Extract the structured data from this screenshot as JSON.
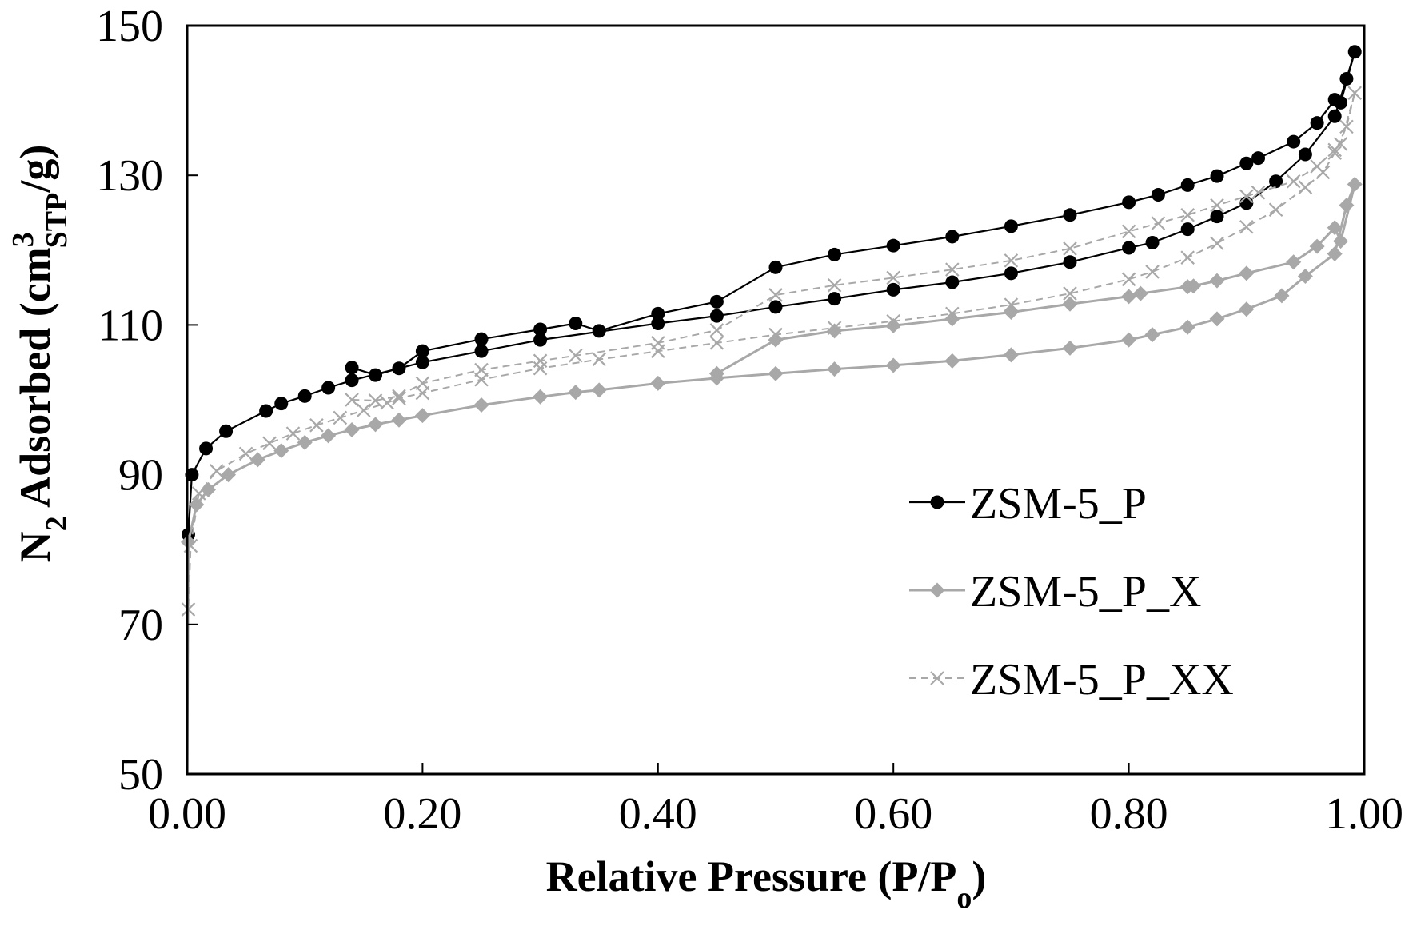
{
  "chart_data": {
    "type": "scatter",
    "xlabel": "Relative Pressure (P/P",
    "xlabel_sub": "o",
    "xlabel_end": ")",
    "ylabel": {
      "p1": "N",
      "s1": "2",
      "p2": " Adsorbed (cm",
      "sup": "3",
      "sub2": "STP",
      "p3": "/g)"
    },
    "xlim": [
      0,
      1.0
    ],
    "ylim": [
      50,
      150
    ],
    "xticks": [
      "0.00",
      "0.20",
      "0.40",
      "0.60",
      "0.80",
      "1.00"
    ],
    "yticks": [
      "50",
      "70",
      "90",
      "110",
      "130",
      "150"
    ],
    "grid": false,
    "legend_position": "center-right",
    "series": [
      {
        "name": "ZSM-5_P",
        "color": "#000000",
        "marker": "circle",
        "line": "solid",
        "adsorption": [
          [
            0.0,
            50
          ],
          [
            0.001,
            82
          ],
          [
            0.004,
            90
          ],
          [
            0.016,
            93.5
          ],
          [
            0.033,
            95.8
          ],
          [
            0.067,
            98.5
          ],
          [
            0.08,
            99.5
          ],
          [
            0.1,
            100.5
          ],
          [
            0.12,
            101.6
          ],
          [
            0.14,
            102.6
          ],
          [
            0.2,
            105
          ],
          [
            0.25,
            106.5
          ],
          [
            0.3,
            108
          ],
          [
            0.4,
            110.2
          ],
          [
            0.45,
            111.2
          ],
          [
            0.5,
            112.4
          ],
          [
            0.55,
            113.5
          ],
          [
            0.6,
            114.7
          ],
          [
            0.65,
            115.7
          ],
          [
            0.7,
            116.9
          ],
          [
            0.75,
            118.4
          ],
          [
            0.8,
            120.3
          ],
          [
            0.82,
            121
          ],
          [
            0.85,
            122.8
          ],
          [
            0.875,
            124.5
          ],
          [
            0.9,
            126.3
          ],
          [
            0.925,
            129.2
          ],
          [
            0.95,
            132.8
          ],
          [
            0.975,
            137.9
          ],
          [
            0.985,
            142.9
          ],
          [
            0.992,
            146.5
          ]
        ],
        "desorption": [
          [
            0.992,
            146.5
          ],
          [
            0.98,
            139.7
          ],
          [
            0.975,
            140.1
          ],
          [
            0.96,
            137
          ],
          [
            0.94,
            134.5
          ],
          [
            0.91,
            132.3
          ],
          [
            0.9,
            131.6
          ],
          [
            0.875,
            129.9
          ],
          [
            0.85,
            128.7
          ],
          [
            0.825,
            127.4
          ],
          [
            0.8,
            126.4
          ],
          [
            0.75,
            124.7
          ],
          [
            0.7,
            123.2
          ],
          [
            0.65,
            121.8
          ],
          [
            0.6,
            120.6
          ],
          [
            0.55,
            119.4
          ],
          [
            0.5,
            117.7
          ],
          [
            0.45,
            113.1
          ],
          [
            0.4,
            111.5
          ],
          [
            0.35,
            109.2
          ],
          [
            0.33,
            110.2
          ],
          [
            0.3,
            109.4
          ],
          [
            0.25,
            108.1
          ],
          [
            0.2,
            106.5
          ],
          [
            0.18,
            104.2
          ],
          [
            0.16,
            103.3
          ],
          [
            0.14,
            104.3
          ]
        ]
      },
      {
        "name": "ZSM-5_P_X",
        "color": "#a8a8a8",
        "marker": "diamond",
        "line": "solid",
        "adsorption": [
          [
            0.0,
            50
          ],
          [
            0.001,
            81
          ],
          [
            0.008,
            86
          ],
          [
            0.018,
            88
          ],
          [
            0.035,
            90
          ],
          [
            0.06,
            92
          ],
          [
            0.08,
            93.2
          ],
          [
            0.1,
            94.3
          ],
          [
            0.12,
            95.2
          ],
          [
            0.14,
            96
          ],
          [
            0.16,
            96.7
          ],
          [
            0.18,
            97.3
          ],
          [
            0.2,
            97.9
          ],
          [
            0.25,
            99.3
          ],
          [
            0.3,
            100.4
          ],
          [
            0.33,
            101
          ],
          [
            0.35,
            101.3
          ],
          [
            0.4,
            102.2
          ],
          [
            0.45,
            102.9
          ],
          [
            0.5,
            103.5
          ],
          [
            0.55,
            104.1
          ],
          [
            0.6,
            104.6
          ],
          [
            0.65,
            105.2
          ],
          [
            0.7,
            106
          ],
          [
            0.75,
            106.9
          ],
          [
            0.8,
            108
          ],
          [
            0.82,
            108.7
          ],
          [
            0.85,
            109.7
          ],
          [
            0.875,
            110.8
          ],
          [
            0.9,
            112.1
          ],
          [
            0.93,
            113.9
          ],
          [
            0.95,
            116.5
          ],
          [
            0.975,
            119.5
          ],
          [
            0.985,
            126
          ],
          [
            0.992,
            128.8
          ]
        ],
        "desorption": [
          [
            0.992,
            128.8
          ],
          [
            0.98,
            121.2
          ],
          [
            0.975,
            123
          ],
          [
            0.96,
            120.5
          ],
          [
            0.94,
            118.4
          ],
          [
            0.9,
            116.9
          ],
          [
            0.875,
            115.9
          ],
          [
            0.855,
            115.2
          ],
          [
            0.85,
            115.1
          ],
          [
            0.81,
            114.2
          ],
          [
            0.8,
            113.8
          ],
          [
            0.75,
            112.8
          ],
          [
            0.7,
            111.7
          ],
          [
            0.65,
            110.8
          ],
          [
            0.6,
            109.9
          ],
          [
            0.55,
            109.2
          ],
          [
            0.5,
            108
          ],
          [
            0.45,
            103.5
          ]
        ]
      },
      {
        "name": "ZSM-5_P_XX",
        "color": "#a8a8a8",
        "marker": "x",
        "line": "dashed",
        "adsorption": [
          [
            0.0,
            50
          ],
          [
            0.001,
            72
          ],
          [
            0.003,
            80.5
          ],
          [
            0.01,
            87.5
          ],
          [
            0.025,
            90.5
          ],
          [
            0.05,
            92.8
          ],
          [
            0.07,
            94.2
          ],
          [
            0.09,
            95.5
          ],
          [
            0.11,
            96.6
          ],
          [
            0.13,
            97.6
          ],
          [
            0.15,
            98.6
          ],
          [
            0.17,
            99.6
          ],
          [
            0.18,
            100.2
          ],
          [
            0.2,
            100.9
          ],
          [
            0.25,
            102.7
          ],
          [
            0.3,
            104.2
          ],
          [
            0.35,
            105.4
          ],
          [
            0.4,
            106.5
          ],
          [
            0.45,
            107.6
          ],
          [
            0.5,
            108.7
          ],
          [
            0.55,
            109.6
          ],
          [
            0.6,
            110.5
          ],
          [
            0.65,
            111.5
          ],
          [
            0.7,
            112.7
          ],
          [
            0.75,
            114.2
          ],
          [
            0.8,
            116.1
          ],
          [
            0.82,
            117.1
          ],
          [
            0.85,
            119
          ],
          [
            0.875,
            120.9
          ],
          [
            0.9,
            123.1
          ],
          [
            0.925,
            125.4
          ],
          [
            0.95,
            128.4
          ],
          [
            0.965,
            130.4
          ],
          [
            0.975,
            133
          ],
          [
            0.985,
            136.5
          ],
          [
            0.992,
            141
          ]
        ],
        "desorption": [
          [
            0.992,
            141
          ],
          [
            0.98,
            134.2
          ],
          [
            0.975,
            133.4
          ],
          [
            0.96,
            131.2
          ],
          [
            0.94,
            129.2
          ],
          [
            0.91,
            127.7
          ],
          [
            0.9,
            127.2
          ],
          [
            0.875,
            126
          ],
          [
            0.85,
            124.7
          ],
          [
            0.825,
            123.6
          ],
          [
            0.8,
            122.5
          ],
          [
            0.75,
            120.2
          ],
          [
            0.7,
            118.6
          ],
          [
            0.65,
            117.4
          ],
          [
            0.6,
            116.3
          ],
          [
            0.55,
            115.3
          ],
          [
            0.5,
            114
          ],
          [
            0.45,
            109.3
          ],
          [
            0.4,
            107.6
          ],
          [
            0.33,
            105.9
          ],
          [
            0.3,
            105.2
          ],
          [
            0.25,
            104
          ],
          [
            0.2,
            102.2
          ],
          [
            0.18,
            100.5
          ],
          [
            0.16,
            99.9
          ],
          [
            0.14,
            100
          ]
        ]
      }
    ]
  }
}
